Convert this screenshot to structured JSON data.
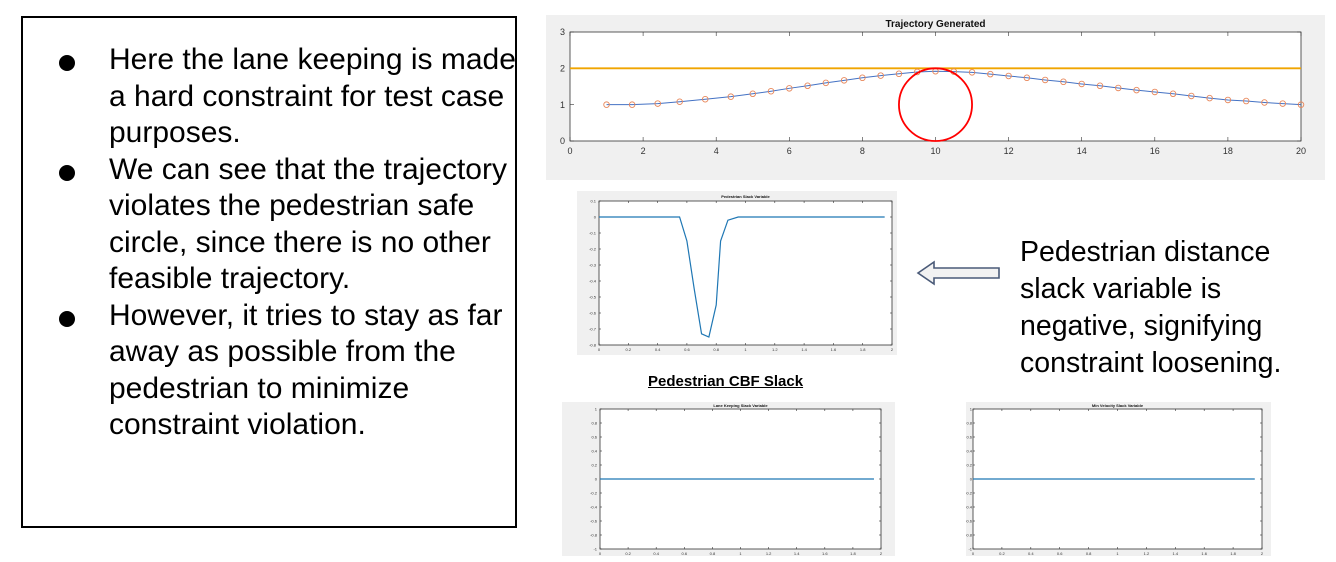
{
  "bullets": [
    "Here the lane keeping is made a hard constraint for test case purposes.",
    "We can see that the trajectory violates the pedestrian safe circle, since there is no other feasible trajectory.",
    "However, it tries to stay as far away as possible from the pedestrian to minimize constraint violation."
  ],
  "note": "Pedestrian distance slack variable is negative, signifying constraint loosening.",
  "caption": "Pedestrian CBF Slack",
  "colors": {
    "trajectory": "#4472c4",
    "points": "#e8875a",
    "lane": "#f0a500",
    "circle": "#ff0000",
    "slack_line": "#1f77b4",
    "plot_bg": "#f0f0f0"
  },
  "chart_data": [
    {
      "id": "trajectory",
      "type": "line",
      "title": "Trajectory Generated",
      "xlim": [
        0,
        20
      ],
      "ylim": [
        0,
        3
      ],
      "xticks": [
        0,
        2,
        4,
        6,
        8,
        10,
        12,
        14,
        16,
        18,
        20
      ],
      "yticks": [
        0,
        1,
        2,
        3
      ],
      "grid": false,
      "lane_y": 2,
      "circle": {
        "cx": 10,
        "cy": 1,
        "r": 1
      },
      "series": [
        {
          "x": [
            1,
            1.7,
            2.4,
            3.0,
            3.7,
            4.4,
            5.0,
            5.5,
            6.0,
            6.5,
            7.0,
            7.5,
            8.0,
            8.5,
            9.0,
            9.5,
            10.0,
            10.5,
            11.0,
            11.5,
            12.0,
            12.5,
            13.0,
            13.5,
            14.0,
            14.5,
            15.0,
            15.5,
            16.0,
            16.5,
            17.0,
            17.5,
            18.0,
            18.5,
            19.0,
            19.5,
            20.0
          ],
          "y": [
            1.0,
            1.0,
            1.03,
            1.08,
            1.15,
            1.22,
            1.3,
            1.37,
            1.45,
            1.52,
            1.6,
            1.67,
            1.74,
            1.8,
            1.85,
            1.9,
            1.92,
            1.91,
            1.89,
            1.84,
            1.79,
            1.74,
            1.68,
            1.63,
            1.57,
            1.52,
            1.46,
            1.4,
            1.35,
            1.3,
            1.24,
            1.18,
            1.13,
            1.1,
            1.06,
            1.03,
            1.0
          ]
        }
      ]
    },
    {
      "id": "pedestrian-slack",
      "type": "line",
      "title": "Pedestrian Slack Variable",
      "xlim": [
        0,
        2
      ],
      "ylim": [
        -0.8,
        0.1
      ],
      "xticks": [
        0,
        0.2,
        0.4,
        0.6,
        0.8,
        1,
        1.2,
        1.4,
        1.6,
        1.8,
        2
      ],
      "yticks": [
        0.1,
        0,
        -0.1,
        -0.2,
        -0.3,
        -0.4,
        -0.5,
        -0.6,
        -0.7,
        -0.8
      ],
      "series": [
        {
          "x": [
            0,
            0.55,
            0.6,
            0.65,
            0.7,
            0.75,
            0.8,
            0.83,
            0.88,
            0.95,
            1.0,
            1.95
          ],
          "y": [
            0,
            0,
            -0.15,
            -0.45,
            -0.73,
            -0.75,
            -0.55,
            -0.15,
            -0.02,
            0,
            0,
            0
          ]
        }
      ]
    },
    {
      "id": "lane-keeping-slack",
      "type": "line",
      "title": "Lane Keeping Slack Variable",
      "xlim": [
        0,
        2
      ],
      "ylim": [
        -1,
        1
      ],
      "xticks": [
        0,
        0.2,
        0.4,
        0.6,
        0.8,
        1,
        1.2,
        1.4,
        1.6,
        1.8,
        2
      ],
      "yticks": [
        1,
        0.8,
        0.6,
        0.4,
        0.2,
        0,
        -0.2,
        -0.4,
        -0.6,
        -0.8,
        -1
      ],
      "series": [
        {
          "x": [
            0,
            1.95
          ],
          "y": [
            0,
            0
          ]
        }
      ]
    },
    {
      "id": "min-velocity-slack",
      "type": "line",
      "title": "Min Velocity Slack Variable",
      "xlim": [
        0,
        2
      ],
      "ylim": [
        -1,
        1
      ],
      "xticks": [
        0,
        0.2,
        0.4,
        0.6,
        0.8,
        1,
        1.2,
        1.4,
        1.6,
        1.8,
        2
      ],
      "yticks": [
        1,
        0.8,
        0.6,
        0.4,
        0.2,
        0,
        -0.2,
        -0.4,
        -0.6,
        -0.8,
        -1
      ],
      "series": [
        {
          "x": [
            0,
            1.95
          ],
          "y": [
            0,
            0
          ]
        }
      ]
    }
  ]
}
